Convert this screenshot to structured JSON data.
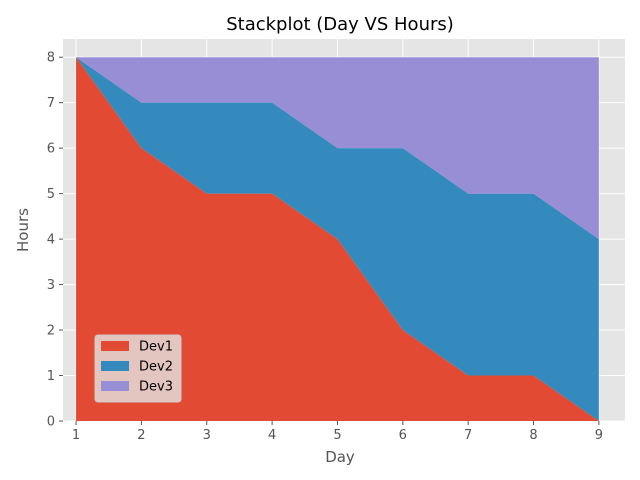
{
  "chart_data": {
    "type": "area",
    "stacked": true,
    "title": "Stackplot (Day VS Hours)",
    "xlabel": "Day",
    "ylabel": "Hours",
    "x": [
      1,
      2,
      3,
      4,
      5,
      6,
      7,
      8,
      9
    ],
    "xlim": [
      0.8,
      9.4
    ],
    "ylim": [
      0,
      8.4
    ],
    "xticks": [
      "1",
      "2",
      "3",
      "4",
      "5",
      "6",
      "7",
      "8",
      "9"
    ],
    "yticks": [
      "0",
      "1",
      "2",
      "3",
      "4",
      "5",
      "6",
      "7",
      "8"
    ],
    "grid": true,
    "legend_position": "lower-left",
    "series": [
      {
        "name": "Dev1",
        "color": "#E24A33",
        "values": [
          8,
          6,
          5,
          5,
          4,
          2,
          1,
          1,
          0
        ]
      },
      {
        "name": "Dev2",
        "color": "#348ABD",
        "values": [
          0,
          1,
          2,
          2,
          2,
          4,
          4,
          4,
          4
        ]
      },
      {
        "name": "Dev3",
        "color": "#988ED5",
        "values": [
          0,
          1,
          1,
          1,
          2,
          2,
          3,
          3,
          4
        ]
      }
    ]
  }
}
